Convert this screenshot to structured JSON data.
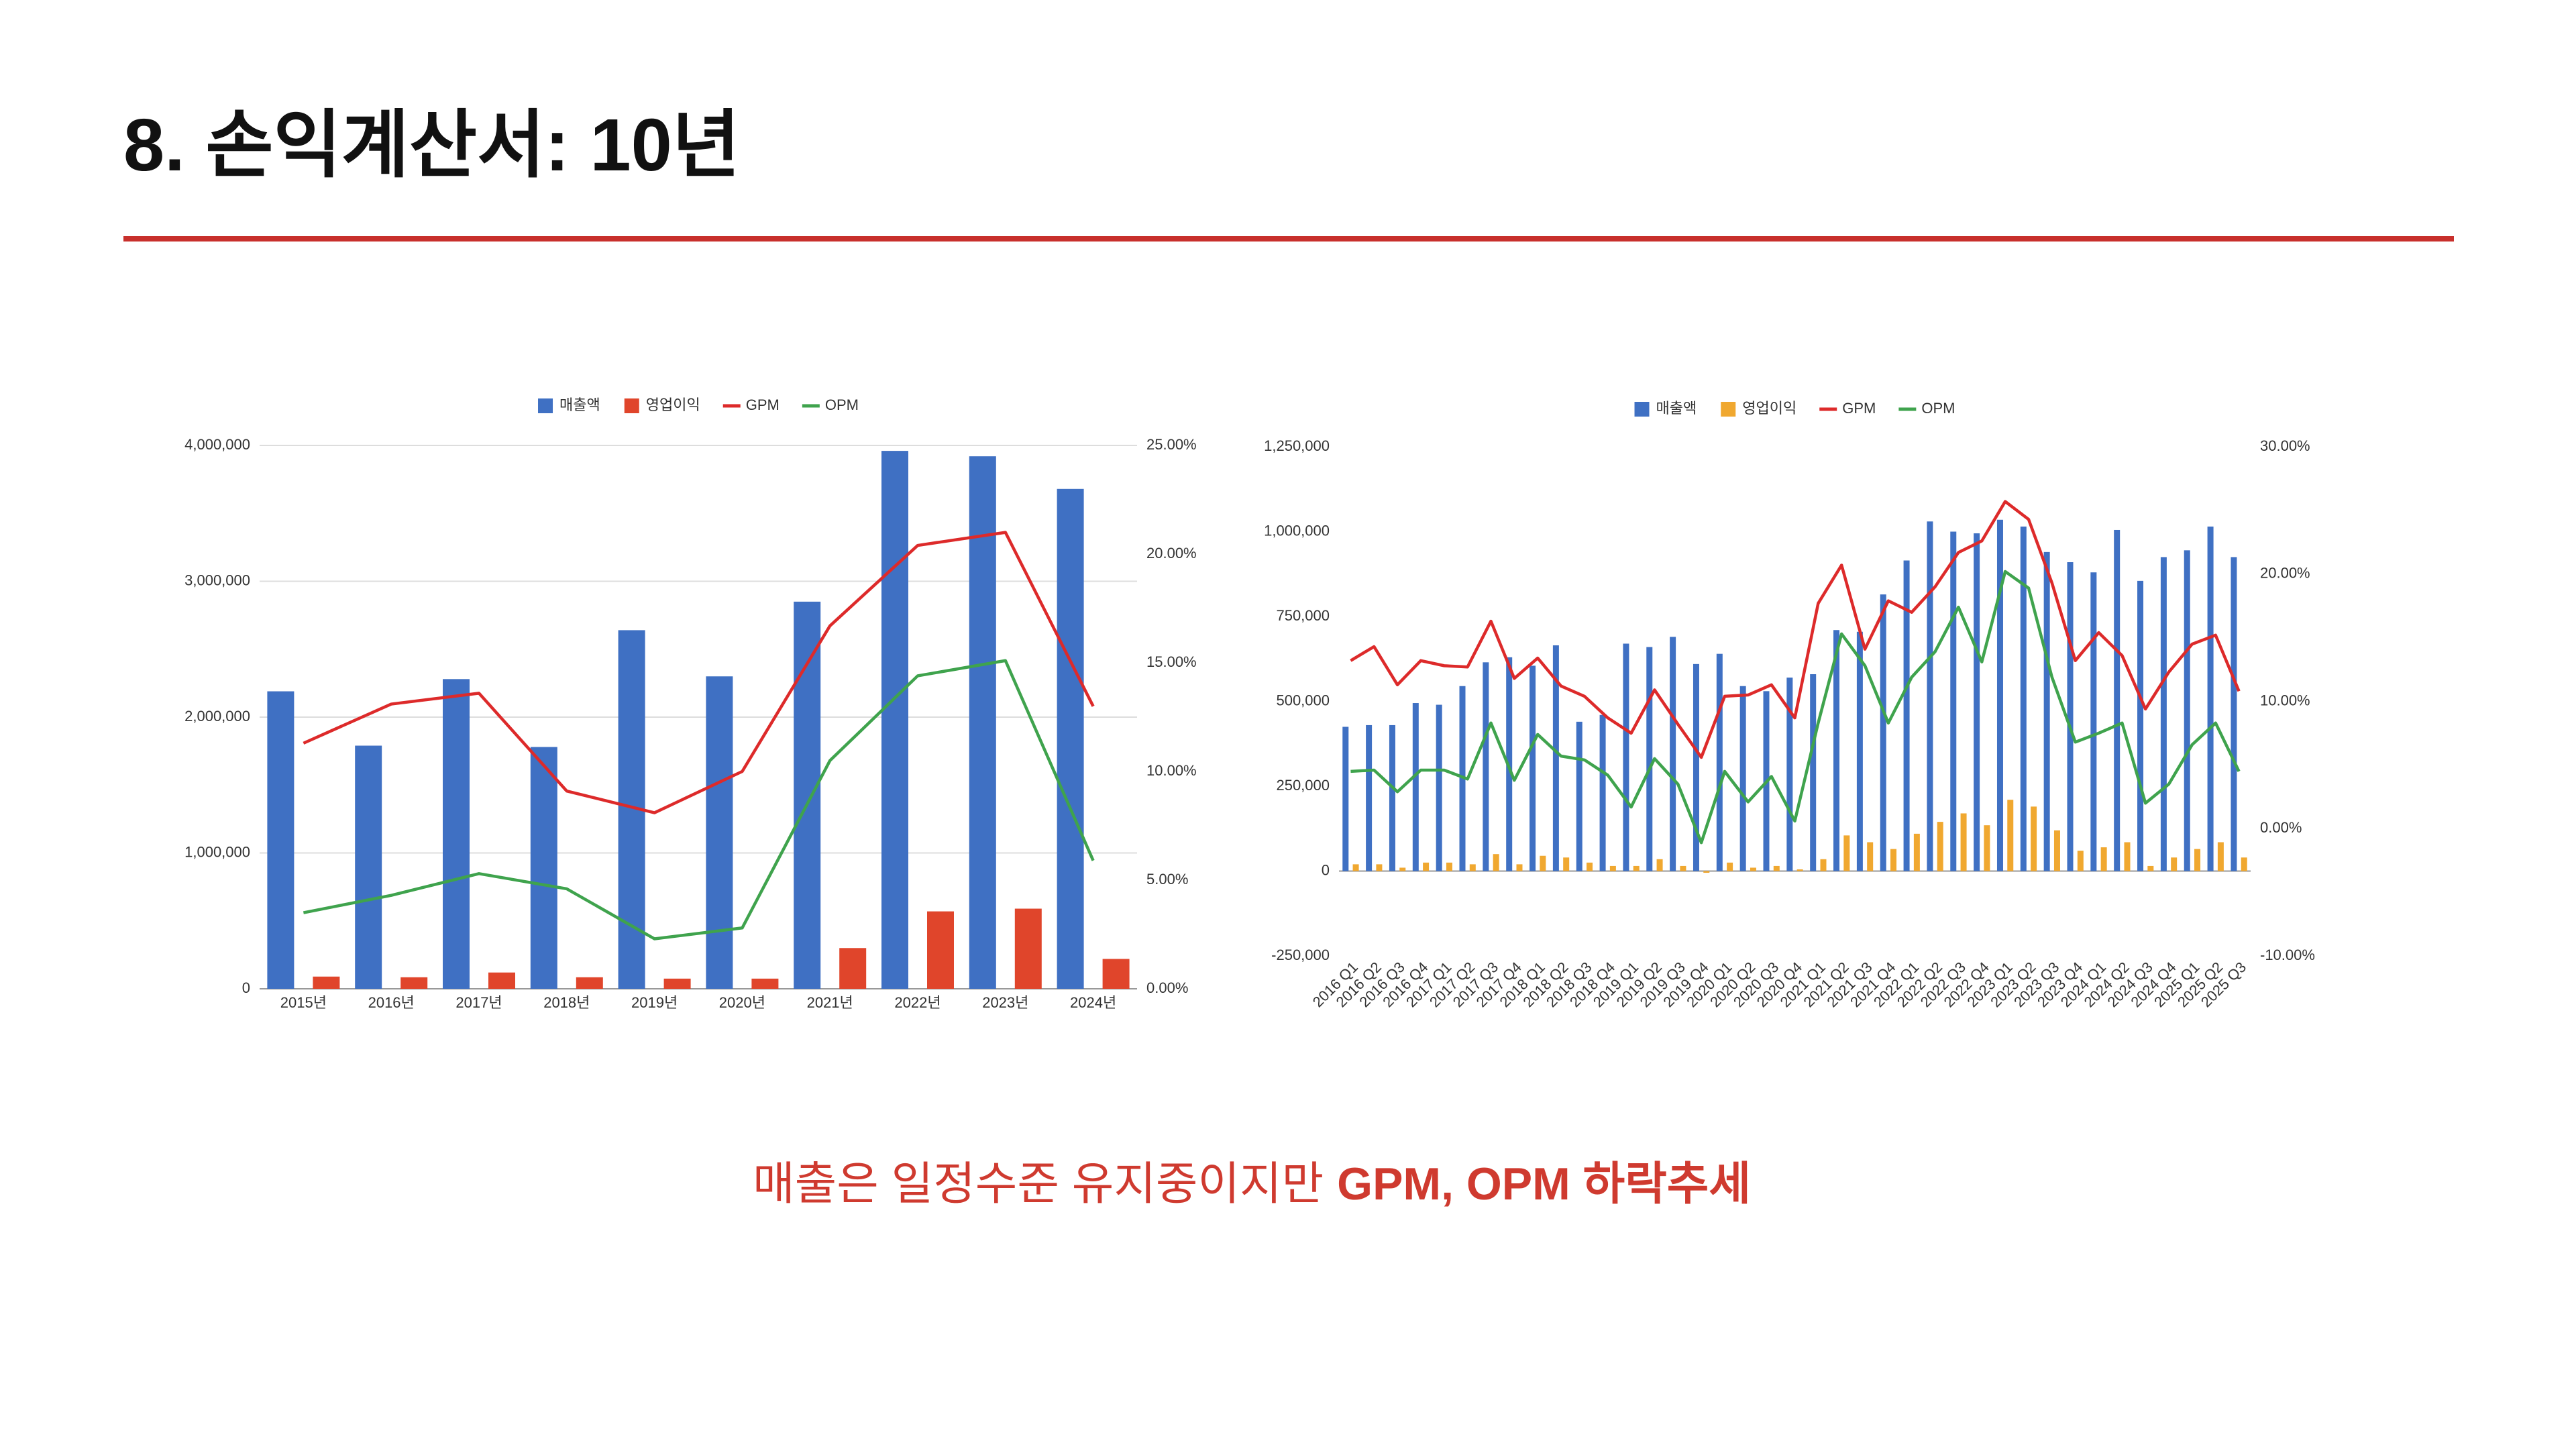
{
  "title": "8. 손익계산서: 10년",
  "caption": [
    "매출은 일정수준 유지중이지만",
    "GPM, OPM 하락추세"
  ],
  "chart_data": [
    {
      "type": "combo",
      "legend": "top",
      "grid": true,
      "categories": [
        "2015년",
        "2016년",
        "2017년",
        "2018년",
        "2019년",
        "2020년",
        "2021년",
        "2022년",
        "2023년",
        "2024년"
      ],
      "series": [
        {
          "name": "매출액",
          "type": "bar",
          "color": "#3f70c3",
          "values": [
            2190000,
            1790000,
            2280000,
            1780000,
            2640000,
            2300000,
            2850000,
            3960000,
            3920000,
            3680000
          ]
        },
        {
          "name": "영업이익",
          "type": "bar",
          "color": "#e0452b",
          "values": [
            90000,
            85000,
            120000,
            85000,
            75000,
            75000,
            300000,
            570000,
            590000,
            220000
          ]
        },
        {
          "name": "GPM",
          "type": "line",
          "axis": "y2",
          "color": "#dd2a2a",
          "values": [
            11.3,
            13.1,
            13.6,
            9.1,
            8.1,
            10.0,
            16.7,
            20.4,
            21.0,
            13.0
          ]
        },
        {
          "name": "OPM",
          "type": "line",
          "axis": "y2",
          "color": "#3fa34d",
          "values": [
            3.5,
            4.3,
            5.3,
            4.6,
            2.3,
            2.8,
            10.5,
            14.4,
            15.1,
            5.9
          ]
        }
      ],
      "ylim": [
        0,
        4000000
      ],
      "yticks": [
        0,
        {
          "value": 1000000,
          "label": "1,000,000"
        },
        {
          "value": 2000000,
          "label": "2,000,000"
        },
        {
          "value": 3000000,
          "label": "3,000,000"
        },
        {
          "value": 4000000,
          "label": "4,000,000"
        }
      ],
      "y2lim": [
        0,
        25
      ],
      "y2ticks": [
        {
          "value": 0,
          "label": "0.00%"
        },
        {
          "value": 5,
          "label": "5.00%"
        },
        {
          "value": 10,
          "label": "10.00%"
        },
        {
          "value": 15,
          "label": "15.00%"
        },
        {
          "value": 20,
          "label": "20.00%"
        },
        {
          "value": 25,
          "label": "25.00%"
        }
      ]
    },
    {
      "type": "combo",
      "legend": "top",
      "grid": false,
      "categories": [
        "2016 Q1",
        "2016 Q2",
        "2016 Q3",
        "2016 Q4",
        "2017 Q1",
        "2017 Q2",
        "2017 Q3",
        "2017 Q4",
        "2018 Q1",
        "2018 Q2",
        "2018 Q3",
        "2018 Q4",
        "2019 Q1",
        "2019 Q2",
        "2019 Q3",
        "2019 Q4",
        "2020 Q1",
        "2020 Q2",
        "2020 Q3",
        "2020 Q4",
        "2021 Q1",
        "2021 Q2",
        "2021 Q3",
        "2021 Q4",
        "2022 Q1",
        "2022 Q2",
        "2022 Q3",
        "2022 Q4",
        "2023 Q1",
        "2023 Q2",
        "2023 Q3",
        "2023 Q4",
        "2024 Q1",
        "2024 Q2",
        "2024 Q3",
        "2024 Q4",
        "2025 Q1",
        "2025 Q2",
        "2025 Q3"
      ],
      "series": [
        {
          "name": "매출액",
          "type": "bar",
          "color": "#3f70c3",
          "values": [
            425000,
            430000,
            430000,
            495000,
            490000,
            545000,
            615000,
            630000,
            605000,
            665000,
            440000,
            460000,
            670000,
            660000,
            690000,
            610000,
            640000,
            545000,
            530000,
            570000,
            580000,
            710000,
            705000,
            815000,
            915000,
            1030000,
            1000000,
            995000,
            1035000,
            1015000,
            940000,
            910000,
            880000,
            1005000,
            855000,
            925000,
            945000,
            1015000,
            925000
          ]
        },
        {
          "name": "영업이익",
          "type": "bar",
          "color": "#f0a830",
          "values": [
            20000,
            20000,
            10000,
            25000,
            25000,
            20000,
            50000,
            20000,
            45000,
            40000,
            25000,
            15000,
            15000,
            35000,
            15000,
            -5000,
            25000,
            10000,
            15000,
            5000,
            35000,
            105000,
            85000,
            65000,
            110000,
            145000,
            170000,
            135000,
            210000,
            190000,
            120000,
            60000,
            70000,
            85000,
            15000,
            40000,
            65000,
            85000,
            40000
          ]
        },
        {
          "name": "GPM",
          "type": "line",
          "axis": "y2",
          "color": "#dd2a2a",
          "values": [
            13.2,
            14.3,
            11.3,
            13.2,
            12.8,
            12.7,
            16.3,
            11.8,
            13.4,
            11.2,
            10.4,
            8.7,
            7.5,
            10.9,
            8.2,
            5.6,
            10.4,
            10.5,
            11.3,
            8.7,
            17.7,
            20.7,
            14.1,
            17.9,
            17.0,
            19.0,
            21.7,
            22.6,
            25.7,
            24.3,
            19.3,
            13.2,
            15.4,
            13.6,
            9.4,
            12.3,
            14.5,
            15.2,
            10.8
          ]
        },
        {
          "name": "OPM",
          "type": "line",
          "axis": "y2",
          "color": "#3fa34d",
          "values": [
            4.5,
            4.6,
            2.9,
            4.6,
            4.6,
            3.9,
            8.3,
            3.8,
            7.4,
            5.7,
            5.4,
            4.2,
            1.7,
            5.5,
            3.5,
            -1.1,
            4.5,
            2.1,
            4.1,
            0.6,
            8.3,
            15.3,
            12.8,
            8.3,
            11.9,
            13.9,
            17.4,
            13.1,
            20.2,
            18.9,
            11.9,
            6.8,
            7.5,
            8.3,
            2.0,
            3.5,
            6.6,
            8.3,
            4.5
          ]
        }
      ],
      "ylim": [
        -250000,
        1250000
      ],
      "yticks": [
        {
          "value": -250000,
          "label": "-250,000"
        },
        0,
        {
          "value": 250000,
          "label": "250,000"
        },
        {
          "value": 500000,
          "label": "500,000"
        },
        {
          "value": 750000,
          "label": "750,000"
        },
        {
          "value": 1000000,
          "label": "1,000,000"
        },
        {
          "value": 1250000,
          "label": "1,250,000"
        }
      ],
      "y2lim": [
        -10,
        30
      ],
      "y2ticks": [
        {
          "value": -10,
          "label": "-10.00%"
        },
        {
          "value": 0,
          "label": "0.00%"
        },
        {
          "value": 10,
          "label": "10.00%"
        },
        {
          "value": 20,
          "label": "20.00%"
        },
        {
          "value": 30,
          "label": "30.00%"
        }
      ]
    }
  ]
}
